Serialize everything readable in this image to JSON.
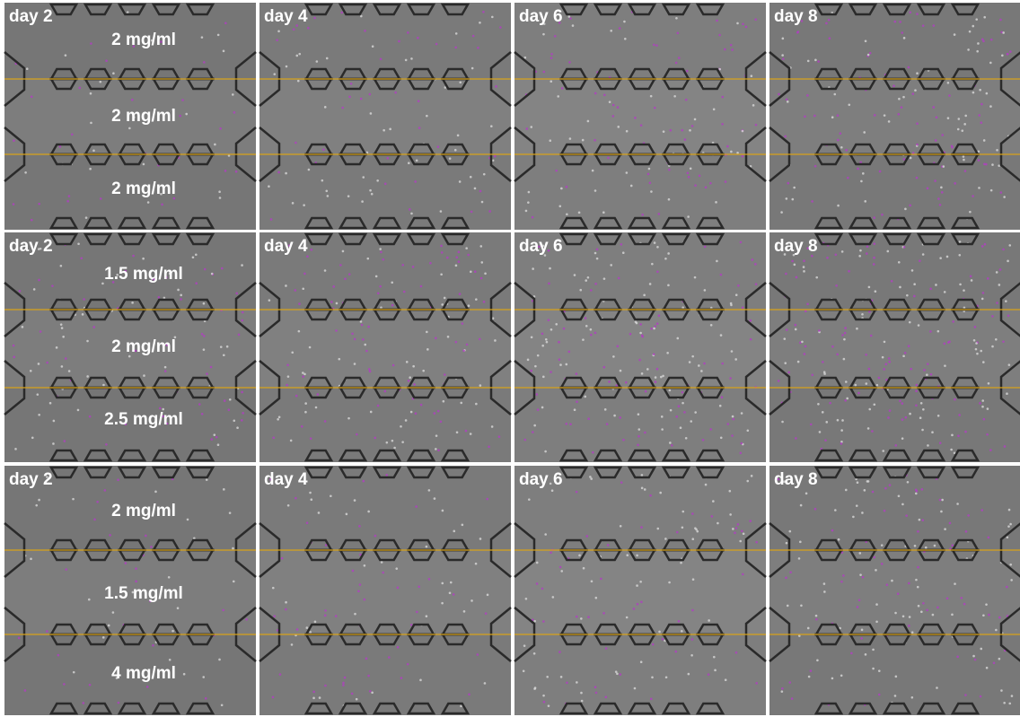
{
  "rows": [
    {
      "panels": [
        "day 2",
        "day 4",
        "day 6",
        "day 8"
      ],
      "concentrations": [
        "2 mg/ml",
        "2 mg/ml",
        "2 mg/ml"
      ]
    },
    {
      "panels": [
        "day 2",
        "day 4",
        "day 6",
        "day 8"
      ],
      "concentrations": [
        "1.5 mg/ml",
        "2 mg/ml",
        "2.5 mg/ml"
      ]
    },
    {
      "panels": [
        "day 2",
        "day 4",
        "day 6",
        "day 8"
      ],
      "concentrations": [
        "2 mg/ml",
        "1.5 mg/ml",
        "4 mg/ml"
      ]
    }
  ]
}
